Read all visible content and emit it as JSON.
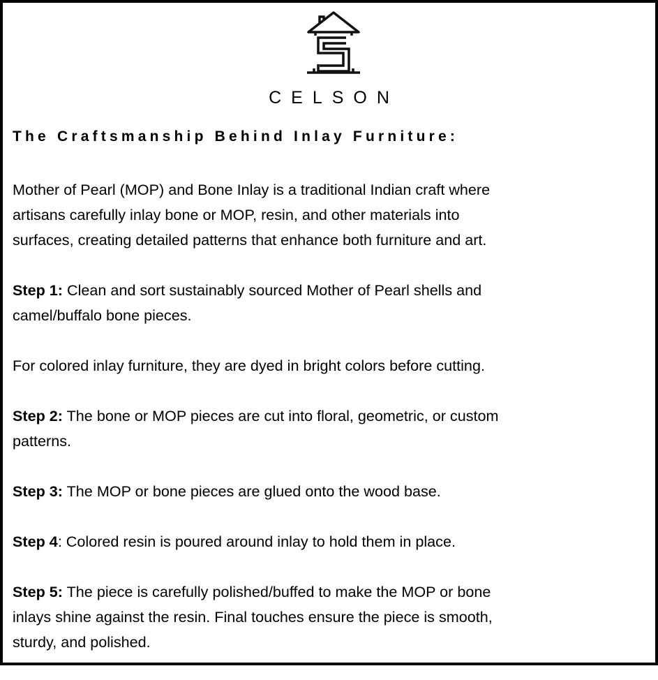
{
  "brand": {
    "name": "CELSON",
    "logo_icon": "house-s-logo-icon"
  },
  "title": "The Craftsmanship Behind Inlay Furniture:",
  "intro": [
    "Mother of Pearl (MOP) and Bone Inlay is a traditional Indian craft where",
    "artisans carefully inlay bone or MOP, resin, and other materials into",
    "surfaces, creating detailed patterns that enhance both furniture and art."
  ],
  "steps": [
    {
      "label": "Step 1:",
      "lines": [
        " Clean and sort sustainably sourced Mother of Pearl shells and",
        "camel/buffalo bone pieces."
      ]
    },
    {
      "label": "",
      "lines": [
        "For colored inlay furniture, they are dyed in bright colors before cutting."
      ]
    },
    {
      "label": "Step 2:",
      "lines": [
        " The bone or MOP pieces are cut into floral, geometric, or custom",
        "patterns."
      ]
    },
    {
      "label": "Step 3:",
      "lines": [
        " The MOP or bone pieces are glued onto the wood base."
      ]
    },
    {
      "label": "Step 4",
      "lines": [
        ": Colored resin is poured around inlay to hold them in place."
      ]
    },
    {
      "label": "Step 5:",
      "lines": [
        " The piece is carefully polished/buffed to make the MOP or bone",
        "inlays shine against the resin. Final touches ensure the piece is smooth,",
        "sturdy, and polished."
      ]
    }
  ]
}
